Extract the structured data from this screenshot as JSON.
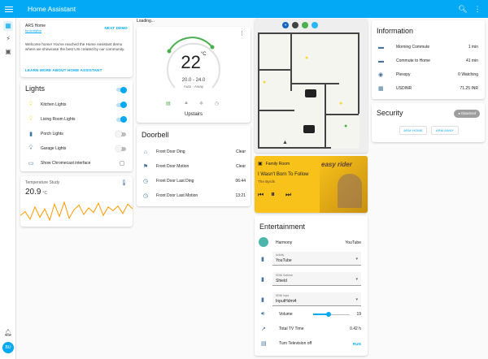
{
  "app": {
    "title": "Home Assistant",
    "sidebar_user": "BU"
  },
  "welcome": {
    "title": "ARS Home",
    "subtitle": "by Analytics",
    "next_demo": "NEXT DEMO",
    "text": "Welcome home! You've reached the Home Assistant demo where we showcase the best UIs created by our community.",
    "learn_more": "LEARN MORE ABOUT HOME ASSISTANT"
  },
  "lights": {
    "title": "Lights",
    "items": [
      {
        "label": "Kitchen Lights",
        "on": true
      },
      {
        "label": "Living Room Lights",
        "on": true
      },
      {
        "label": "Porch Lights",
        "on": false
      },
      {
        "label": "Garage Lights",
        "on": false
      },
      {
        "label": "Show Chromecast interface",
        "on": false
      }
    ]
  },
  "temperature": {
    "title": "Temperature Study",
    "value": "20.9",
    "unit": "°C",
    "history": [
      19.2,
      19.6,
      18.8,
      20.1,
      19.0,
      19.9,
      18.7,
      20.4,
      19.1,
      20.6,
      18.9,
      19.8,
      20.3,
      19.3,
      20.0,
      19.5,
      20.5,
      19.2,
      20.1,
      19.7,
      20.2,
      19.4,
      20.4,
      19.9
    ]
  },
  "thermostat": {
    "loading": "Loading...",
    "temp": "22",
    "unit": "°C",
    "range": "20.0 - 24.0",
    "mode": "Auto - Away",
    "name": "Upstairs"
  },
  "doorbell": {
    "title": "Doorbell",
    "rows": [
      {
        "label": "Front Door Ding",
        "value": "Clear"
      },
      {
        "label": "Front Door Motion",
        "value": "Clear"
      },
      {
        "label": "Front Door Last Ding",
        "value": "06:44"
      },
      {
        "label": "Front Door Last Motion",
        "value": "13:21"
      }
    ]
  },
  "media": {
    "room": "Family Room",
    "title": "I Wasn't Born To Follow",
    "artist": "The Byrds",
    "art_text": "easy rider"
  },
  "entertainment": {
    "title": "Entertainment",
    "harmony_label": "Harmony",
    "harmony_value": "YouTube",
    "activity_cap": "Activity",
    "activity_val": "YouTube",
    "hdmi_cap": "HDMI Switcher",
    "hdmi_val": "Shield",
    "hdmi_in_cap": "HDMI Input",
    "hdmi_in_val": "InputHdmi4",
    "volume_label": "Volume",
    "volume_value": "19",
    "volume_fraction": 0.42,
    "tv_time_label": "Total TV Time",
    "tv_time_value": "0.42 h",
    "tv_off_label": "Turn Television off",
    "tv_off_action": "RUN"
  },
  "information": {
    "title": "Information",
    "rows": [
      {
        "label": "Morning Commute",
        "value": "1 min"
      },
      {
        "label": "Commute to Home",
        "value": "41 min"
      },
      {
        "label": "Plexspy",
        "value": "0 Watching"
      },
      {
        "label": "USDINR",
        "value": "71.25 INR"
      }
    ]
  },
  "security": {
    "title": "Security",
    "status": "Disarmed",
    "arm_home": "ARM HOME",
    "arm_away": "ARM AWAY"
  },
  "colors": {
    "primary": "#03a9f4",
    "accent": "#4caf50",
    "media_bg": "#f9c21a",
    "bulb_on": "#fdd835"
  }
}
